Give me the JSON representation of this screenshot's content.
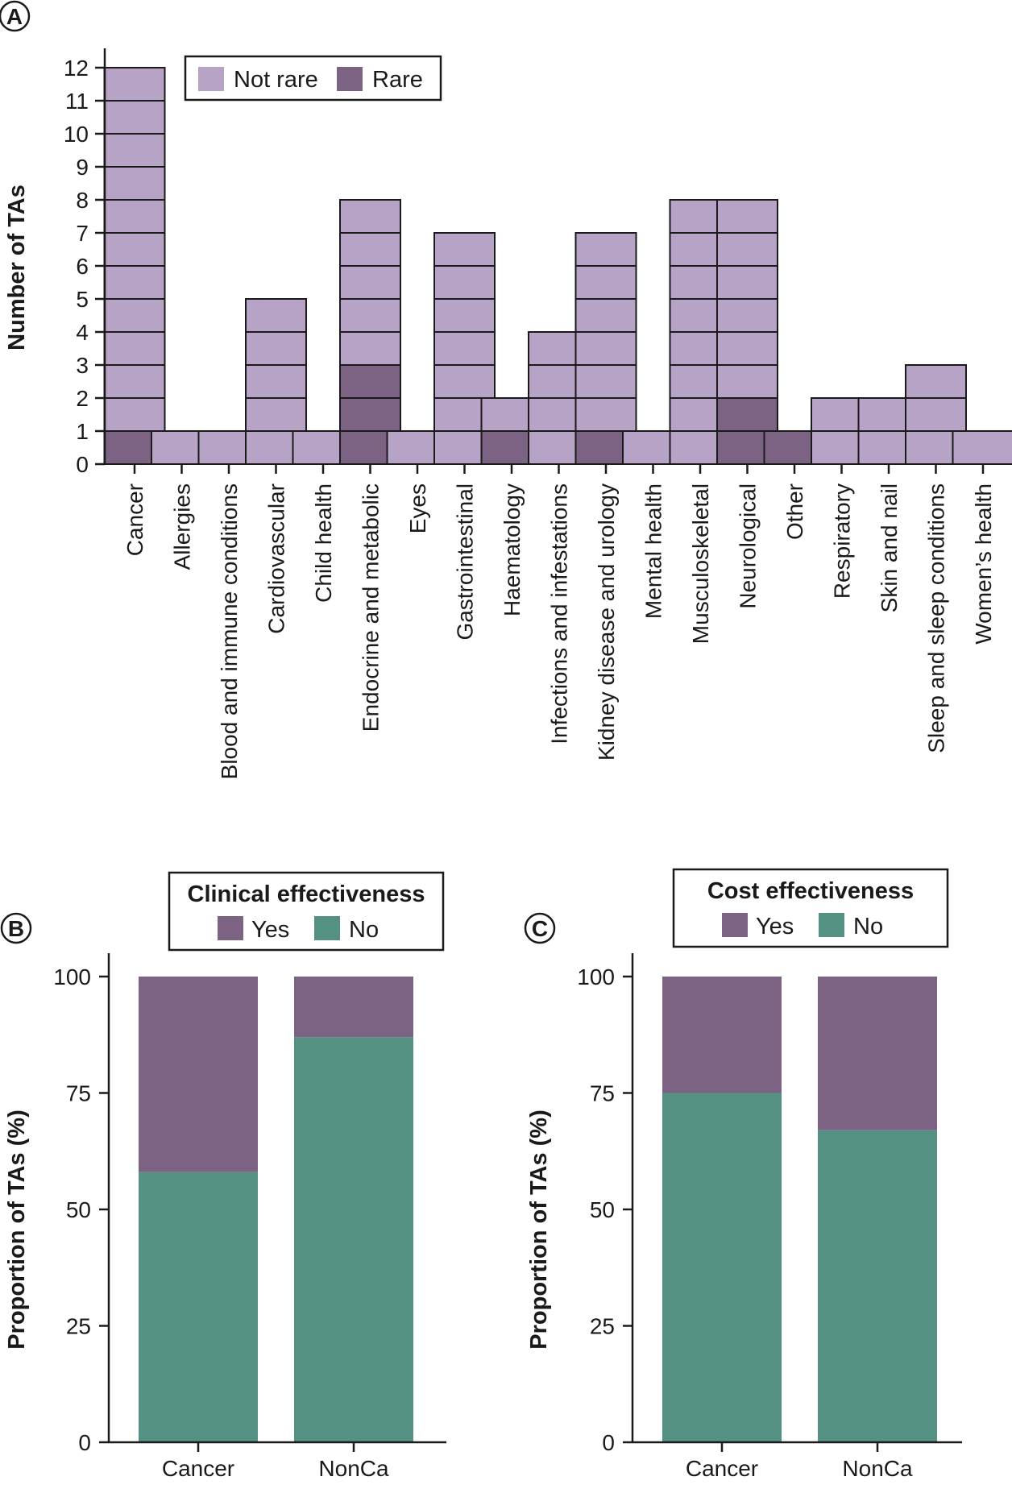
{
  "colors": {
    "not_rare": "#b7a3c5",
    "rare": "#7c6283",
    "yes": "#7c6283",
    "no": "#559183",
    "outline": "#1a1a1a"
  },
  "chart_data": [
    {
      "panel": "A",
      "type": "bar",
      "stacked": true,
      "ylabel": "Number of TAs",
      "ylim": [
        0,
        12
      ],
      "yticks": [
        0,
        1,
        2,
        3,
        4,
        5,
        6,
        7,
        8,
        9,
        10,
        11,
        12
      ],
      "legend": {
        "placement": "top-left",
        "items": [
          "Not rare",
          "Rare"
        ]
      },
      "categories": [
        "Cancer",
        "Allergies",
        "Blood and immune conditions",
        "Cardiovascular",
        "Child health",
        "Endocrine and metabolic",
        "Eyes",
        "Gastrointestinal",
        "Haematology",
        "Infections and infestations",
        "Kidney disease and urology",
        "Mental health",
        "Musculoskeletal",
        "Neurological",
        "Other",
        "Respiratory",
        "Skin and nail",
        "Sleep and sleep conditions",
        "Women’s health"
      ],
      "series": [
        {
          "name": "Rare",
          "values": [
            1,
            0,
            0,
            0,
            0,
            3,
            0,
            0,
            1,
            0,
            1,
            0,
            0,
            2,
            1,
            0,
            0,
            0,
            0
          ]
        },
        {
          "name": "Not rare",
          "values": [
            11,
            1,
            1,
            5,
            1,
            5,
            1,
            7,
            1,
            4,
            6,
            1,
            8,
            6,
            0,
            2,
            2,
            3,
            1
          ]
        }
      ]
    },
    {
      "panel": "B",
      "type": "bar",
      "stacked": true,
      "legend_title": "Clinical effectiveness",
      "ylabel": "Proportion of TAs (%)",
      "ylim": [
        0,
        100
      ],
      "yticks": [
        0,
        25,
        50,
        75,
        100
      ],
      "legend": {
        "placement": "top",
        "items": [
          "Yes",
          "No"
        ]
      },
      "categories": [
        "Cancer",
        "NonCa"
      ],
      "series": [
        {
          "name": "No",
          "values": [
            58,
            87
          ]
        },
        {
          "name": "Yes",
          "values": [
            42,
            13
          ]
        }
      ]
    },
    {
      "panel": "C",
      "type": "bar",
      "stacked": true,
      "legend_title": "Cost effectiveness",
      "ylabel": "Proportion of TAs (%)",
      "ylim": [
        0,
        100
      ],
      "yticks": [
        0,
        25,
        50,
        75,
        100
      ],
      "legend": {
        "placement": "top",
        "items": [
          "Yes",
          "No"
        ]
      },
      "categories": [
        "Cancer",
        "NonCa"
      ],
      "series": [
        {
          "name": "No",
          "values": [
            75,
            67
          ]
        },
        {
          "name": "Yes",
          "values": [
            25,
            33
          ]
        }
      ]
    }
  ]
}
